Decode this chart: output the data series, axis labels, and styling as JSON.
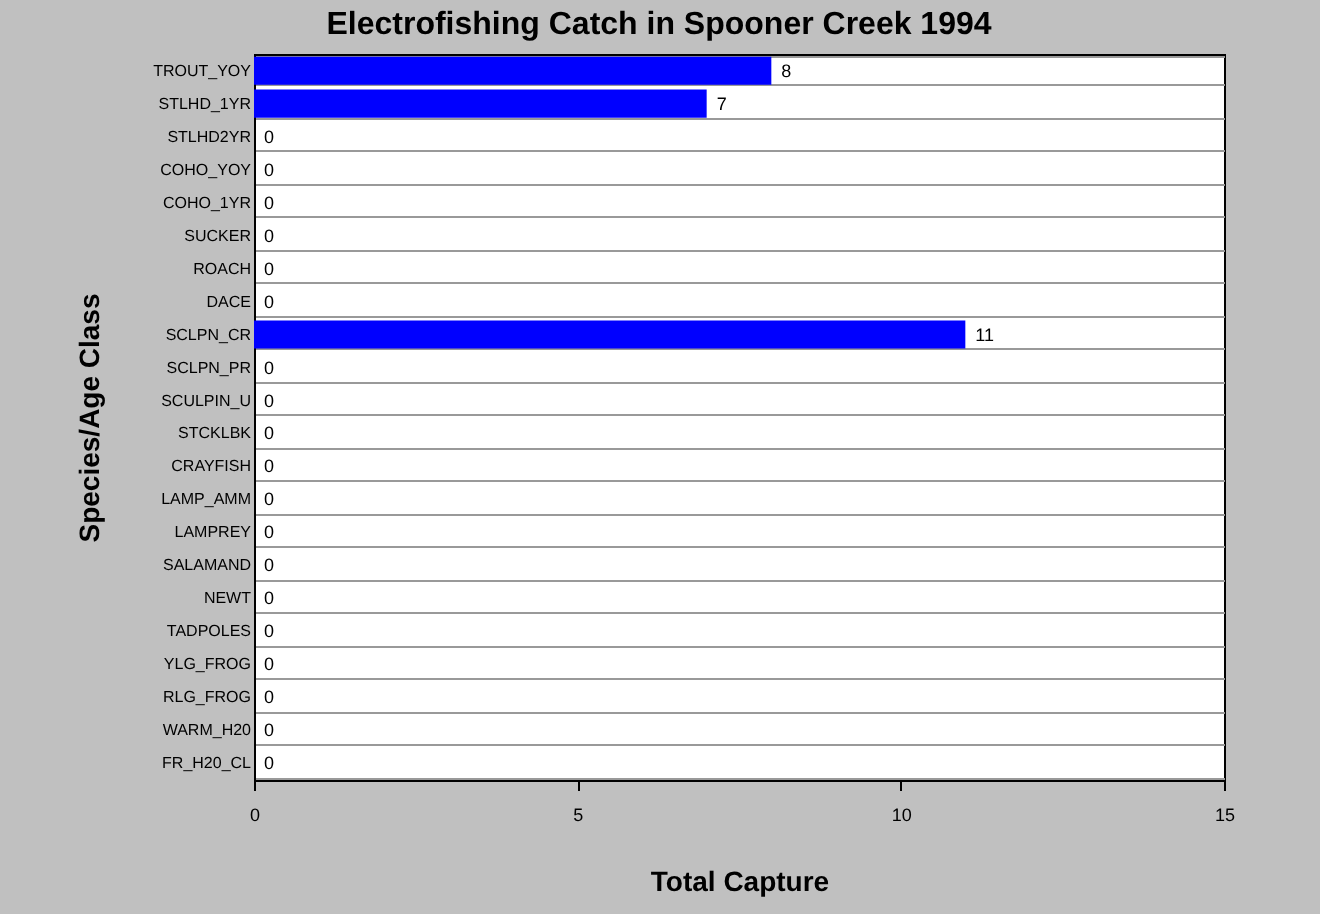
{
  "chart_data": {
    "type": "bar",
    "orientation": "horizontal",
    "title": "Electrofishing Catch in Spooner Creek 1994",
    "xlabel": "Total Capture",
    "ylabel": "Species/Age Class",
    "categories": [
      "TROUT_YOY",
      "STLHD_1YR",
      "STLHD2YR",
      "COHO_YOY",
      "COHO_1YR",
      "SUCKER",
      "ROACH",
      "DACE",
      "SCLPN_CR",
      "SCLPN_PR",
      "SCULPIN_U",
      "STCKLBK",
      "CRAYFISH",
      "LAMP_AMM",
      "LAMPREY",
      "SALAMAND",
      "NEWT",
      "TADPOLES",
      "YLG_FROG",
      "RLG_FROG",
      "WARM_H20",
      "FR_H20_CL"
    ],
    "values": [
      8,
      7,
      0,
      0,
      0,
      0,
      0,
      0,
      11,
      0,
      0,
      0,
      0,
      0,
      0,
      0,
      0,
      0,
      0,
      0,
      0,
      0
    ],
    "color": "#0000ff",
    "xlim": [
      0,
      15
    ],
    "xticks": [
      0,
      5,
      10,
      15
    ],
    "grid": "y",
    "data_labels": true
  }
}
